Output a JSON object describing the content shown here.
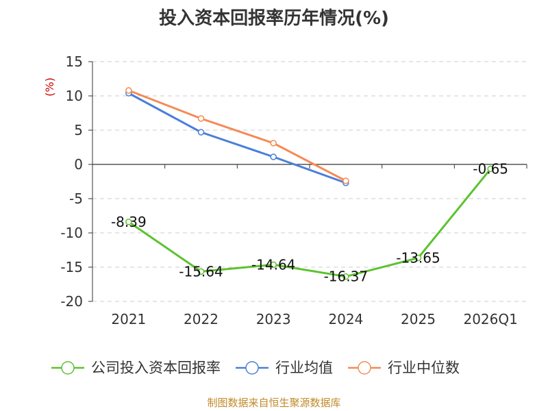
{
  "chart_data": {
    "type": "line",
    "title": "投入资本回报率历年情况(%)",
    "ylabel": "(%)",
    "categories": [
      "2021",
      "2022",
      "2023",
      "2024",
      "2025",
      "2026Q1"
    ],
    "ylim": [
      -20,
      15
    ],
    "yticks": [
      15,
      10,
      5,
      0,
      -5,
      -10,
      -15,
      -20
    ],
    "grid": true,
    "legend_position": "bottom",
    "series": [
      {
        "name": "公司投入资本回报率",
        "color": "#5cc22e",
        "values": [
          -8.39,
          -15.64,
          -14.64,
          -16.37,
          -13.65,
          -0.65
        ],
        "labels": [
          "-8.39",
          "-15.64",
          "-14.64",
          "-16.37",
          "-13.65",
          "-0.65"
        ]
      },
      {
        "name": "行业均值",
        "color": "#4a7fd9",
        "values": [
          10.4,
          4.7,
          1.1,
          -2.7,
          null,
          null
        ]
      },
      {
        "name": "行业中位数",
        "color": "#f58a54",
        "values": [
          10.8,
          6.7,
          3.1,
          -2.4,
          null,
          null
        ]
      }
    ]
  },
  "source": "制图数据来自恒生聚源数据库"
}
